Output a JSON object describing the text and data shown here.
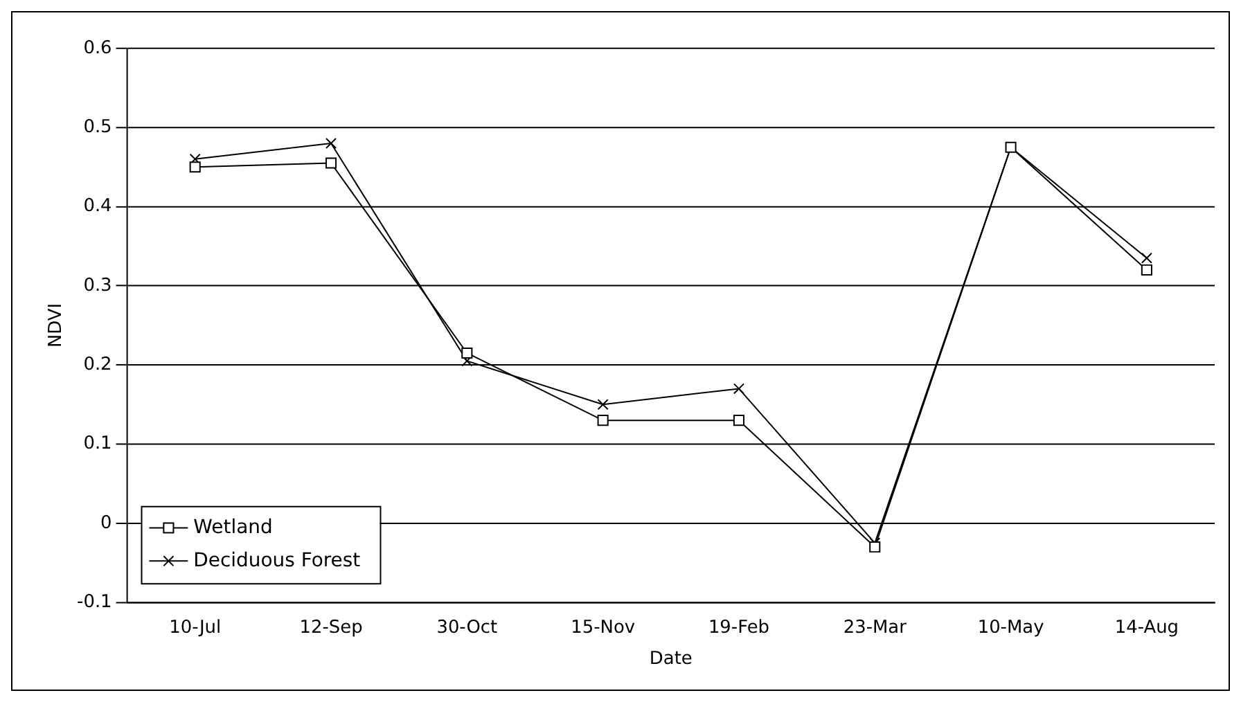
{
  "chart_data": {
    "type": "line",
    "xlabel": "Date",
    "ylabel": "NDVI",
    "categories": [
      "10-Jul",
      "12-Sep",
      "30-Oct",
      "15-Nov",
      "19-Feb",
      "23-Mar",
      "10-May",
      "14-Aug"
    ],
    "series": [
      {
        "name": "Wetland",
        "color": "#000000",
        "marker": "square",
        "values": [
          0.45,
          0.455,
          0.215,
          0.13,
          0.13,
          -0.03,
          0.475,
          0.32
        ]
      },
      {
        "name": "Deciduous Forest",
        "color": "#000000",
        "marker": "cross",
        "values": [
          0.46,
          0.48,
          0.205,
          0.15,
          0.17,
          -0.025,
          0.475,
          0.335
        ]
      }
    ],
    "ylim": [
      -0.1,
      0.6
    ],
    "yticks": [
      -0.1,
      0,
      0.1,
      0.2,
      0.3,
      0.4,
      0.5,
      0.6
    ],
    "grid": "y",
    "legend": "bottom left",
    "line_style": "solid"
  }
}
